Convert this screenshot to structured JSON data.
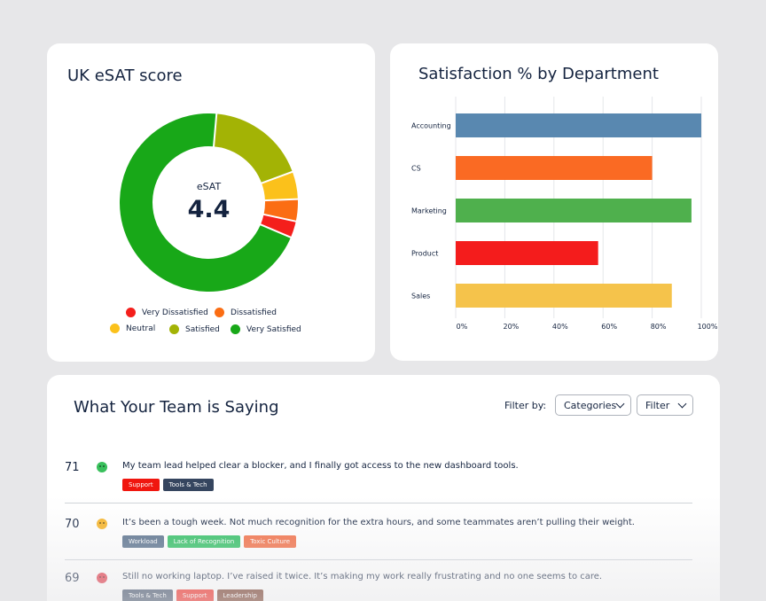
{
  "esat_card": {
    "title": "UK eSAT score",
    "center_label": "eSAT",
    "center_value": "4.4",
    "legend": [
      {
        "label": "Very Dissatisfied",
        "color": "#f41f1c"
      },
      {
        "label": "Dissatisfied",
        "color": "#fb6d13"
      },
      {
        "label": "Neutral",
        "color": "#fbc11b"
      },
      {
        "label": "Satisfied",
        "color": "#a3b305"
      },
      {
        "label": "Very Satisfied",
        "color": "#18a818"
      }
    ]
  },
  "department_card": {
    "title": "Satisfaction % by Department"
  },
  "feed": {
    "title": "What Your Team is Saying",
    "filter_label": "Filter by:",
    "categories_dropdown": "Categories",
    "filter_dropdown": "Filter",
    "comments": [
      {
        "number": "71",
        "sentiment": "positive",
        "face_color": "#39c05c",
        "text": "My team lead helped clear a blocker, and I finally got access to the new dashboard tools.",
        "tags": [
          {
            "label": "Support",
            "color": "#f0160f"
          },
          {
            "label": "Tools & Tech",
            "color": "#35455f"
          }
        ]
      },
      {
        "number": "70",
        "sentiment": "neutral",
        "face_color": "#f7b52a",
        "text": "It’s been a tough week. Not much recognition for the extra hours, and some teammates aren’t pulling their weight.",
        "tags": [
          {
            "label": "Workload",
            "color": "#58708c"
          },
          {
            "label": "Lack of Recognition",
            "color": "#2fbf63"
          },
          {
            "label": "Toxic Culture",
            "color": "#f26d44"
          }
        ]
      },
      {
        "number": "69",
        "sentiment": "negative",
        "face_color": "#e13544",
        "text": "Still no working laptop. I’ve raised it twice. It’s making my work really frustrating and no one seems to care.",
        "tags": [
          {
            "label": "Tools & Tech",
            "color": "#35455f"
          },
          {
            "label": "Support",
            "color": "#f0160f"
          },
          {
            "label": "Leadership",
            "color": "#6b2a16"
          }
        ]
      }
    ]
  },
  "chart_data": [
    {
      "type": "pie",
      "variant": "donut",
      "categories": [
        "Very Dissatisfied",
        "Dissatisfied",
        "Neutral",
        "Satisfied",
        "Very Satisfied"
      ],
      "values": [
        3,
        4,
        5,
        18,
        70
      ],
      "colors": [
        "#f41f1c",
        "#fb6d13",
        "#fbc11b",
        "#a3b305",
        "#18a818"
      ],
      "title": "UK eSAT score",
      "center_label": "eSAT",
      "center_value": "4.4",
      "legend": "bottom"
    },
    {
      "type": "bar",
      "orientation": "horizontal",
      "title": "Satisfaction % by Department",
      "categories": [
        "Accounting",
        "CS",
        "Marketing",
        "Product",
        "Sales"
      ],
      "values": [
        100,
        80,
        96,
        58,
        88
      ],
      "colors": [
        "#5988b0",
        "#fa6a23",
        "#4fb04d",
        "#f41c1c",
        "#f5c34b"
      ],
      "xlim": [
        0,
        100
      ],
      "xticks": [
        "0%",
        "20%",
        "40%",
        "60%",
        "80%",
        "100%"
      ],
      "grid": true,
      "xlabel": "",
      "ylabel": ""
    }
  ]
}
